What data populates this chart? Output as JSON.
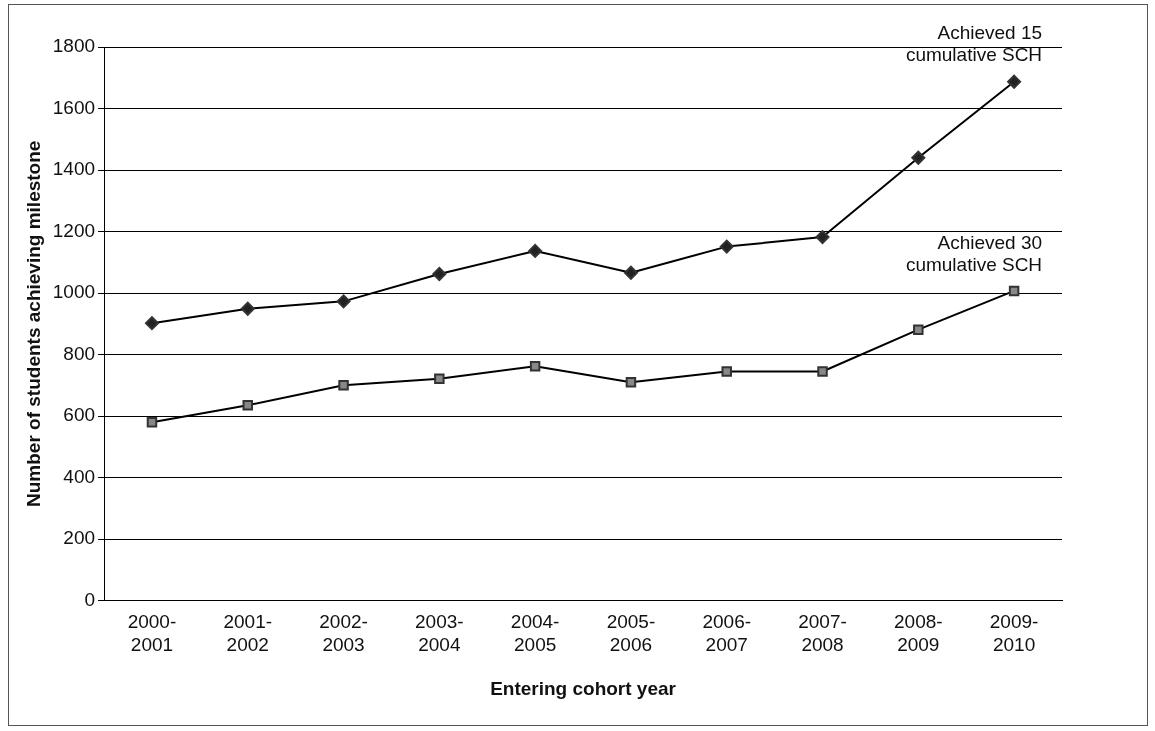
{
  "chart_data": {
    "type": "line",
    "xlabel": "Entering cohort year",
    "ylabel": "Number of students achieving milestone",
    "categories": [
      "2000-\n2001",
      "2001-\n2002",
      "2002-\n2003",
      "2003-\n2004",
      "2004-\n2005",
      "2005-\n2006",
      "2006-\n2007",
      "2007-\n2008",
      "2008-\n2009",
      "2009-\n2010"
    ],
    "series": [
      {
        "color": "#222222",
        "marker": "diamond",
        "values": [
          902,
          949,
          973,
          1062,
          1137,
          1066,
          1151,
          1182,
          1440,
          1687
        ]
      },
      {
        "color": "#888888",
        "marker": "square",
        "values": [
          580,
          635,
          700,
          721,
          762,
          710,
          745,
          745,
          881,
          1007
        ]
      }
    ],
    "ylim": [
      0,
      1800
    ],
    "yticks": [
      0,
      200,
      400,
      600,
      800,
      1000,
      1200,
      1400,
      1600,
      1800
    ],
    "grid": "y",
    "legend": false,
    "annotations": [
      {
        "text": "Achieved 15\ncumulative SCH",
        "x": "2009-\n2010",
        "y": 1687
      },
      {
        "text": "Achieved 30\ncumulative SCH",
        "x": "2009-\n2010",
        "y": 1007
      }
    ]
  }
}
